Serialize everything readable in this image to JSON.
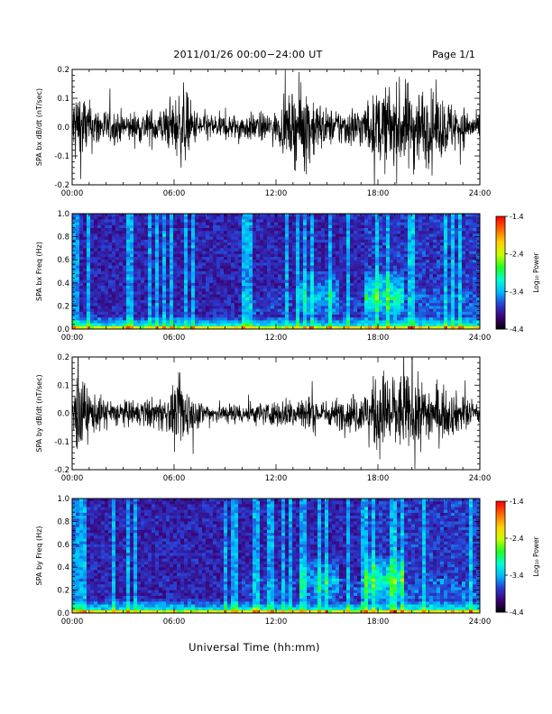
{
  "header": {
    "title": "2011/01/26  00:00−24:00 UT",
    "page": "Page 1/1"
  },
  "footer": {
    "xlabel": "Universal Time (hh:mm)"
  },
  "x_ticks": [
    "00:00",
    "06:00",
    "12:00",
    "18:00",
    "24:00"
  ],
  "colorbar": {
    "label": "Log₁₀ Power",
    "ticks": [
      "-1.4",
      "-2.4",
      "-3.4",
      "-4.4"
    ],
    "range": [
      -4.4,
      -1.4
    ],
    "colors": [
      "#000000",
      "#3a0070",
      "#2b3ad0",
      "#00b7ff",
      "#00ffd0",
      "#20ff20",
      "#c8ff00",
      "#ffd000",
      "#ff6a00",
      "#ff0000"
    ]
  },
  "chart_data": [
    {
      "type": "line",
      "ylabel": "SPA bx dB/dt (nT/sec)",
      "xlim": [
        "00:00",
        "24:00"
      ],
      "ylim": [
        -0.2,
        0.2
      ],
      "y_ticks": [
        "0.2",
        "0.1",
        "0.0",
        "-0.1",
        "-0.2"
      ],
      "activity_hours": [
        0,
        0.3,
        1.0,
        2.0,
        3.5,
        5.5,
        6.6,
        7.2,
        8.5,
        12.0,
        13.6,
        15.0,
        17.2,
        18.3,
        20.0,
        22.8,
        24.0
      ],
      "amplitude": [
        0.11,
        0.19,
        0.1,
        0.07,
        0.06,
        0.08,
        0.16,
        0.07,
        0.05,
        0.06,
        0.18,
        0.07,
        0.09,
        0.16,
        0.18,
        0.09,
        0.04
      ]
    },
    {
      "type": "heatmap",
      "ylabel": "SPA bx Freq (Hz)",
      "xlim": [
        "00:00",
        "24:00"
      ],
      "ylim": [
        0.0,
        1.0
      ],
      "y_ticks": [
        "1.0",
        "0.8",
        "0.6",
        "0.4",
        "0.2",
        "0.0"
      ],
      "zlabel": "Log₁₀ Power",
      "zlim": [
        -4.4,
        -1.4
      ],
      "enhanced_band_hours": [
        [
          13.3,
          15.8
        ],
        [
          17.3,
          19.5
        ]
      ],
      "enhanced_band_freq_hz": [
        0.1,
        0.5
      ]
    },
    {
      "type": "line",
      "ylabel": "SPA by dB/dt (nT/sec)",
      "xlim": [
        "00:00",
        "24:00"
      ],
      "ylim": [
        -0.2,
        0.2
      ],
      "y_ticks": [
        "0.2",
        "0.1",
        "0.0",
        "-0.1",
        "-0.2"
      ],
      "activity_hours": [
        0,
        0.3,
        1.0,
        2.0,
        3.5,
        5.5,
        6.6,
        7.2,
        8.5,
        12.0,
        13.6,
        15.0,
        17.2,
        18.3,
        20.0,
        22.8,
        24.0
      ],
      "amplitude": [
        0.1,
        0.18,
        0.09,
        0.06,
        0.05,
        0.07,
        0.15,
        0.06,
        0.04,
        0.05,
        0.08,
        0.05,
        0.09,
        0.18,
        0.15,
        0.08,
        0.04
      ]
    },
    {
      "type": "heatmap",
      "ylabel": "SPA by Freq (Hz)",
      "xlim": [
        "00:00",
        "24:00"
      ],
      "ylim": [
        0.0,
        1.0
      ],
      "y_ticks": [
        "1.0",
        "0.8",
        "0.6",
        "0.4",
        "0.2",
        "0.0"
      ],
      "zlabel": "Log₁₀ Power",
      "zlim": [
        -4.4,
        -1.4
      ],
      "enhanced_band_hours": [
        [
          13.3,
          15.8
        ],
        [
          17.3,
          19.5
        ]
      ],
      "enhanced_band_freq_hz": [
        0.1,
        0.5
      ]
    }
  ]
}
